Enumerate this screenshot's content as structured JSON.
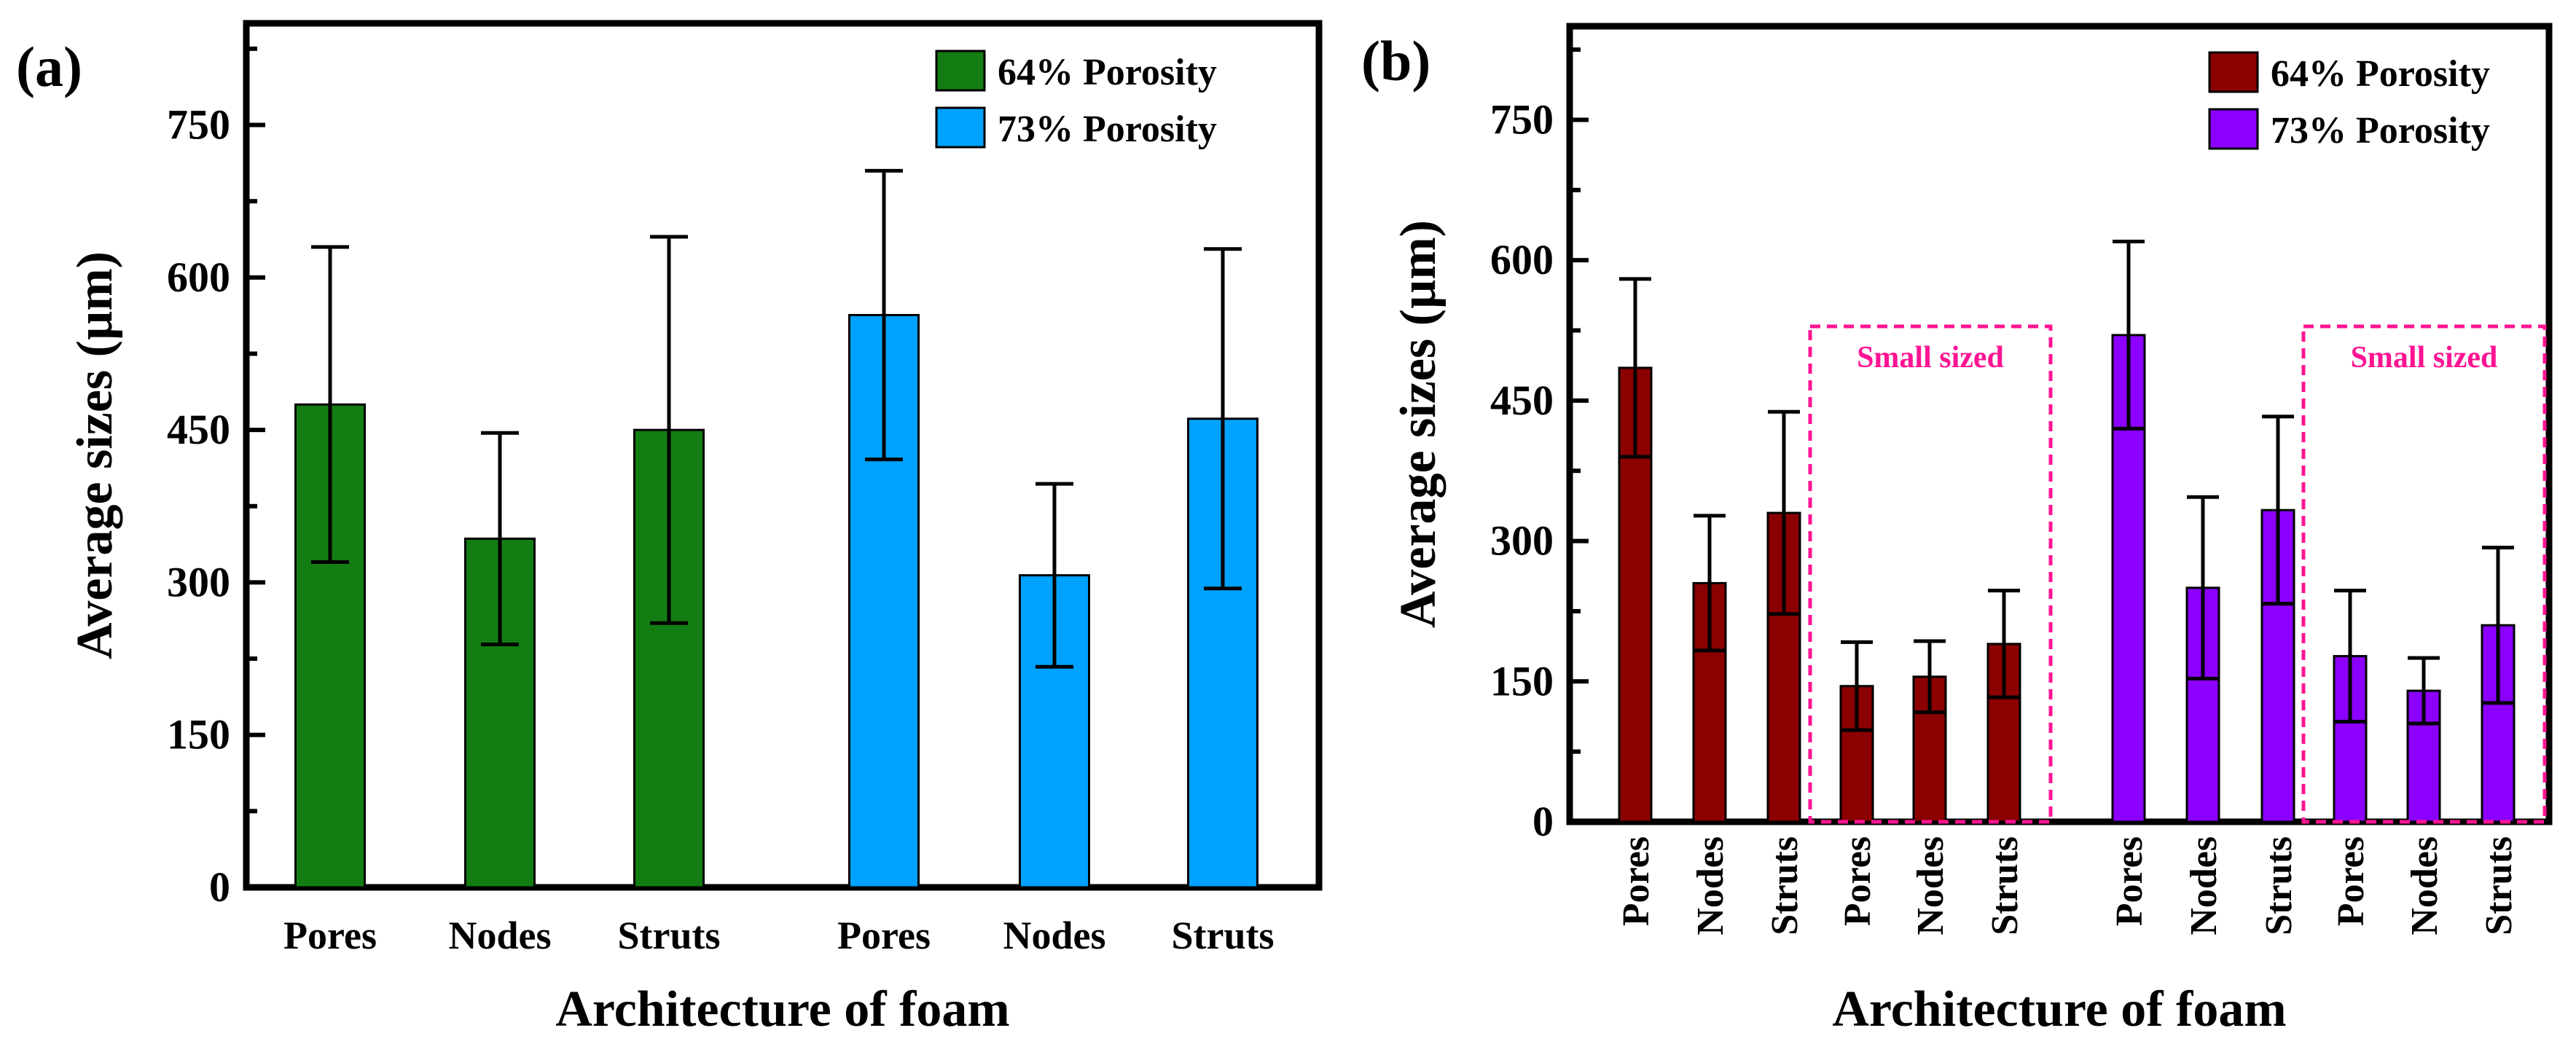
{
  "figure": {
    "panels": [
      "(a)",
      "(b)"
    ]
  },
  "chart_data": [
    {
      "type": "bar",
      "panel_label": "(a)",
      "title": "",
      "xlabel": "Architecture of foam",
      "ylabel": "Average sizes (µm)",
      "ylim": [
        0,
        850
      ],
      "yticks": [
        0,
        150,
        300,
        450,
        600,
        750
      ],
      "legend_position": "top-right",
      "series": [
        {
          "name": "64% Porosity",
          "color": "#137d13",
          "categories": [
            "Pores",
            "Nodes",
            "Struts"
          ],
          "values": [
            475,
            343,
            450
          ],
          "errors": [
            155,
            104,
            190
          ]
        },
        {
          "name": "73% Porosity",
          "color": "#00a2ff",
          "categories": [
            "Pores",
            "Nodes",
            "Struts"
          ],
          "values": [
            563,
            307,
            461
          ],
          "errors": [
            142,
            90,
            167
          ]
        }
      ],
      "annotations": []
    },
    {
      "type": "bar",
      "panel_label": "(b)",
      "title": "",
      "xlabel": "Architecture of foam",
      "ylabel": "Average sizes (µm)",
      "ylim": [
        0,
        850
      ],
      "yticks": [
        0,
        150,
        300,
        450,
        600,
        750
      ],
      "legend_position": "top-right",
      "series": [
        {
          "name": "64% Porosity",
          "color": "#8b0000",
          "categories": [
            "Pores",
            "Nodes",
            "Struts",
            "Pores",
            "Nodes",
            "Struts"
          ],
          "values": [
            485,
            255,
            330,
            145,
            155,
            190
          ],
          "errors": [
            95,
            72,
            108,
            47,
            38,
            57
          ]
        },
        {
          "name": "73% Porosity",
          "color": "#8b00ff",
          "categories": [
            "Pores",
            "Nodes",
            "Struts",
            "Pores",
            "Nodes",
            "Struts"
          ],
          "values": [
            520,
            250,
            333,
            177,
            140,
            210
          ],
          "errors": [
            100,
            97,
            100,
            70,
            35,
            83
          ]
        }
      ],
      "annotations": [
        {
          "text": "Small sized",
          "group": "64% Porosity"
        },
        {
          "text": "Small sized",
          "group": "73% Porosity"
        }
      ]
    }
  ]
}
